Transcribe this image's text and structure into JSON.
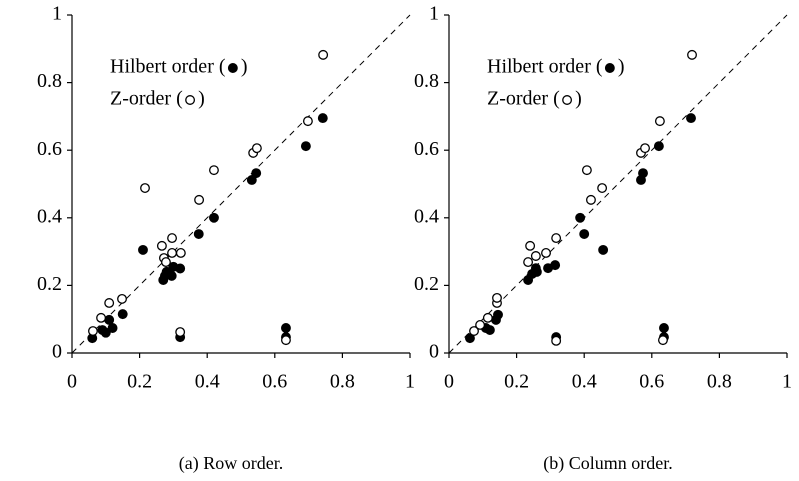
{
  "chart_data": [
    {
      "type": "scatter",
      "caption": "(a) Row order.",
      "xlim": [
        0,
        1
      ],
      "ylim": [
        0,
        1
      ],
      "xticks": [
        0,
        0.2,
        0.4,
        0.6,
        0.8,
        1
      ],
      "yticks": [
        0,
        0.2,
        0.4,
        0.6,
        0.8,
        1
      ],
      "series": [
        {
          "name": "Hilbert order",
          "color": "#000000",
          "filled": true,
          "x": [
            0.06,
            0.09,
            0.1,
            0.11,
            0.12,
            0.15,
            0.21,
            0.27,
            0.275,
            0.28,
            0.3,
            0.295,
            0.32,
            0.32,
            0.375,
            0.42,
            0.532,
            0.545,
            0.692,
            0.742,
            0.633,
            0.633
          ],
          "values": [
            0.044,
            0.068,
            0.06,
            0.098,
            0.074,
            0.115,
            0.305,
            0.216,
            0.228,
            0.24,
            0.255,
            0.228,
            0.25,
            0.047,
            0.352,
            0.4,
            0.512,
            0.532,
            0.612,
            0.695,
            0.074,
            0.047
          ]
        },
        {
          "name": "Z-order",
          "color": "#000000",
          "filled": false,
          "x": [
            0.062,
            0.086,
            0.11,
            0.148,
            0.216,
            0.266,
            0.272,
            0.278,
            0.296,
            0.296,
            0.322,
            0.32,
            0.376,
            0.42,
            0.536,
            0.547,
            0.698,
            0.743,
            0.633
          ],
          "values": [
            0.065,
            0.104,
            0.148,
            0.16,
            0.488,
            0.317,
            0.281,
            0.269,
            0.34,
            0.296,
            0.296,
            0.062,
            0.453,
            0.541,
            0.592,
            0.606,
            0.686,
            0.882,
            0.038
          ]
        }
      ]
    },
    {
      "type": "scatter",
      "caption": "(b) Column order.",
      "xlim": [
        0,
        1
      ],
      "ylim": [
        0,
        1
      ],
      "xticks": [
        0,
        0.2,
        0.4,
        0.6,
        0.8,
        1
      ],
      "yticks": [
        0,
        0.2,
        0.4,
        0.6,
        0.8,
        1
      ],
      "series": [
        {
          "name": "Hilbert order",
          "color": "#000000",
          "filled": true,
          "x": [
            0.062,
            0.109,
            0.121,
            0.139,
            0.145,
            0.234,
            0.246,
            0.257,
            0.26,
            0.293,
            0.314,
            0.317,
            0.388,
            0.4,
            0.456,
            0.568,
            0.574,
            0.621,
            0.716,
            0.636,
            0.636
          ],
          "values": [
            0.044,
            0.074,
            0.068,
            0.098,
            0.113,
            0.216,
            0.234,
            0.251,
            0.24,
            0.251,
            0.26,
            0.047,
            0.4,
            0.352,
            0.305,
            0.512,
            0.532,
            0.612,
            0.695,
            0.074,
            0.047
          ]
        },
        {
          "name": "Z-order",
          "color": "#000000",
          "filled": false,
          "x": [
            0.074,
            0.092,
            0.115,
            0.142,
            0.142,
            0.234,
            0.24,
            0.257,
            0.287,
            0.317,
            0.317,
            0.408,
            0.42,
            0.453,
            0.568,
            0.58,
            0.624,
            0.719,
            0.633
          ],
          "values": [
            0.065,
            0.083,
            0.104,
            0.148,
            0.163,
            0.269,
            0.317,
            0.287,
            0.296,
            0.34,
            0.036,
            0.541,
            0.453,
            0.488,
            0.592,
            0.606,
            0.686,
            0.882,
            0.038
          ]
        }
      ]
    }
  ]
}
